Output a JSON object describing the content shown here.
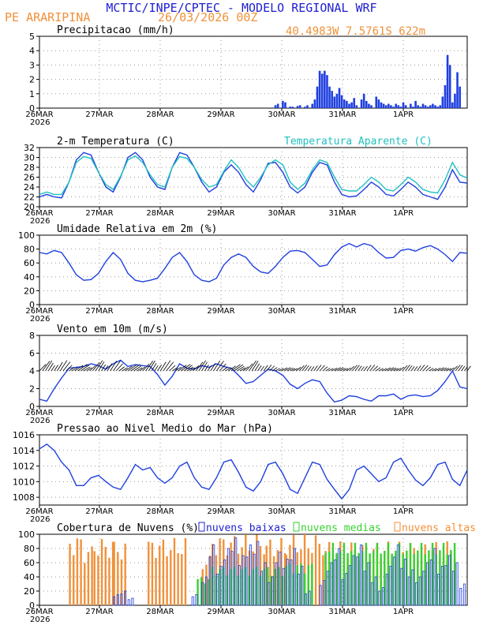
{
  "header": {
    "title": "MCTIC/INPE/CPTEC - MODELO REGIONAL WRF",
    "location": "PE ARARIPINA",
    "datetime": "26/03/2026 00Z",
    "coords": "40.4983W 7.5761S 622m"
  },
  "colors": {
    "blue": "#1f3fe0",
    "cyan": "#20c0c0",
    "orange": "#f0913a",
    "green": "#38d030",
    "text_blue": "#2020d0",
    "text_orange": "#f0913a"
  },
  "chart_data": [
    {
      "id": "precip",
      "type": "bar",
      "title": "Precipitacao (mm/h)",
      "ylim": [
        0,
        5
      ],
      "yticks": [
        0,
        1,
        2,
        3,
        4,
        5
      ],
      "xticks": [
        "26MAR",
        "27MAR",
        "28MAR",
        "29MAR",
        "30MAR",
        "31MAR",
        "1APR"
      ],
      "x_year": "2026",
      "x_hours": [
        96,
        97,
        99,
        100,
        102,
        103,
        105,
        106,
        108,
        109,
        111,
        112,
        113,
        114,
        115,
        116,
        117,
        118,
        119,
        120,
        121,
        122,
        123,
        124,
        125,
        126,
        127,
        128,
        129,
        131,
        132,
        133,
        134,
        135,
        137,
        138,
        139,
        140,
        141,
        142,
        143,
        144,
        145,
        146,
        147,
        148,
        149,
        151,
        152,
        153,
        154,
        155,
        156,
        157,
        158,
        159,
        160,
        161,
        162,
        163,
        164,
        165,
        166,
        167,
        168,
        169,
        170,
        171
      ],
      "values": [
        0.2,
        0.3,
        0.5,
        0.4,
        0.1,
        0.1,
        0.15,
        0.2,
        0.1,
        0.2,
        0.3,
        0.6,
        1.5,
        2.6,
        2.4,
        2.6,
        2.3,
        1.5,
        1.2,
        0.8,
        1.0,
        1.4,
        0.9,
        0.6,
        0.5,
        0.3,
        0.4,
        0.7,
        0.2,
        0.6,
        1.0,
        0.5,
        0.3,
        0.2,
        0.8,
        0.6,
        0.4,
        0.3,
        0.2,
        0.3,
        0.2,
        0.1,
        0.3,
        0.2,
        0.1,
        0.4,
        0.2,
        0.3,
        0.1,
        0.5,
        0.2,
        0.1,
        0.3,
        0.2,
        0.1,
        0.2,
        0.3,
        0.2,
        0.1,
        0.2,
        0.8,
        1.6,
        3.7,
        3.0,
        0.4,
        1.0,
        2.5,
        1.5
      ]
    },
    {
      "id": "temp",
      "type": "line",
      "title": "2-m Temperatura (C)",
      "series_label_2": "Temperatura Aparente (C)",
      "ylim": [
        20,
        32
      ],
      "yticks": [
        20,
        22,
        24,
        26,
        28,
        30,
        32
      ],
      "xticks": [
        "26MAR",
        "27MAR",
        "28MAR",
        "29MAR",
        "30MAR",
        "31MAR",
        "1APR"
      ],
      "x_year": "2026",
      "series": [
        {
          "name": "2-m Temperatura (C)",
          "color": "blue",
          "x": [
            0,
            3,
            6,
            9,
            12,
            15,
            18,
            21,
            24,
            27,
            30,
            33,
            36,
            39,
            42,
            45,
            48,
            51,
            54,
            57,
            60,
            63,
            66,
            69,
            72,
            75,
            78,
            81,
            84,
            87,
            90,
            93,
            96,
            99,
            102,
            105,
            108,
            111,
            114,
            117,
            120,
            123,
            126,
            129,
            132,
            135,
            138,
            141,
            144,
            147,
            150,
            153,
            156,
            159,
            162,
            165,
            168,
            171,
            174
          ],
          "y": [
            22,
            22.5,
            22,
            21.8,
            25,
            29.5,
            31,
            30.5,
            27,
            24,
            23,
            26,
            30,
            31,
            29.5,
            26,
            24,
            23.5,
            28,
            31,
            30.5,
            28,
            25,
            23,
            24,
            27,
            28.5,
            27,
            24.5,
            23,
            25.5,
            28.8,
            29,
            27,
            24,
            22.8,
            24,
            27,
            29,
            28.5,
            25,
            22.5,
            22,
            22.2,
            23.5,
            25,
            24,
            22.5,
            22.2,
            23.5,
            25,
            24,
            22.5,
            22,
            21.5,
            24,
            27.5,
            25,
            24.8
          ]
        },
        {
          "name": "Temperatura Aparente (C)",
          "color": "cyan",
          "x": [
            0,
            3,
            6,
            9,
            12,
            15,
            18,
            21,
            24,
            27,
            30,
            33,
            36,
            39,
            42,
            45,
            48,
            51,
            54,
            57,
            60,
            63,
            66,
            69,
            72,
            75,
            78,
            81,
            84,
            87,
            90,
            93,
            96,
            99,
            102,
            105,
            108,
            111,
            114,
            117,
            120,
            123,
            126,
            129,
            132,
            135,
            138,
            141,
            144,
            147,
            150,
            153,
            156,
            159,
            162,
            165,
            168,
            171,
            174
          ],
          "y": [
            22.5,
            23,
            22.5,
            22.5,
            25,
            29,
            30.2,
            29.8,
            27,
            24.5,
            23.5,
            26.2,
            29.5,
            30.3,
            29,
            26.5,
            24.5,
            24,
            28,
            30.2,
            29.8,
            28,
            25.5,
            24,
            24.5,
            27.2,
            29.5,
            28,
            25.5,
            24,
            26,
            28.5,
            29.5,
            28.5,
            25,
            23.5,
            24.8,
            27.5,
            29.5,
            29,
            26,
            23.5,
            23.2,
            23.2,
            24.5,
            26,
            25,
            23.5,
            23.2,
            24.5,
            26,
            25,
            23.5,
            23,
            22.8,
            25.5,
            29,
            26.5,
            25.8
          ]
        }
      ]
    },
    {
      "id": "rh",
      "type": "line",
      "title": "Umidade Relativa em 2m (%)",
      "ylim": [
        0,
        100
      ],
      "yticks": [
        0,
        20,
        40,
        60,
        80,
        100
      ],
      "xticks": [
        "26MAR",
        "27MAR",
        "28MAR",
        "29MAR",
        "30MAR",
        "31MAR",
        "1APR"
      ],
      "x_year": "2026",
      "x": [
        0,
        3,
        6,
        9,
        12,
        15,
        18,
        21,
        24,
        27,
        30,
        33,
        36,
        39,
        42,
        45,
        48,
        51,
        54,
        57,
        60,
        63,
        66,
        69,
        72,
        75,
        78,
        81,
        84,
        87,
        90,
        93,
        96,
        99,
        102,
        105,
        108,
        111,
        114,
        117,
        120,
        123,
        126,
        129,
        132,
        135,
        138,
        141,
        144,
        147,
        150,
        153,
        156,
        159,
        162,
        165,
        168,
        171,
        174
      ],
      "y": [
        75,
        73,
        78,
        75,
        60,
        43,
        35,
        36,
        45,
        62,
        75,
        65,
        45,
        35,
        33,
        35,
        38,
        52,
        68,
        75,
        62,
        43,
        35,
        33,
        38,
        57,
        68,
        73,
        68,
        55,
        47,
        45,
        55,
        68,
        77,
        78,
        75,
        65,
        55,
        57,
        72,
        83,
        88,
        83,
        88,
        85,
        75,
        67,
        68,
        78,
        80,
        77,
        82,
        85,
        80,
        72,
        62,
        75,
        74
      ]
    },
    {
      "id": "wind",
      "type": "line",
      "title": "Vento em 10m (m/s)",
      "ylim": [
        0,
        8
      ],
      "yticks": [
        0,
        2,
        4,
        6,
        8
      ],
      "xticks": [
        "26MAR",
        "27MAR",
        "28MAR",
        "29MAR",
        "30MAR",
        "31MAR",
        "1APR"
      ],
      "x_year": "2026",
      "x": [
        0,
        3,
        6,
        9,
        12,
        15,
        18,
        21,
        24,
        27,
        30,
        33,
        36,
        39,
        42,
        45,
        48,
        51,
        54,
        57,
        60,
        63,
        66,
        69,
        72,
        75,
        78,
        81,
        84,
        87,
        90,
        93,
        96,
        99,
        102,
        105,
        108,
        111,
        114,
        117,
        120,
        123,
        126,
        129,
        132,
        135,
        138,
        141,
        144,
        147,
        150,
        153,
        156,
        159,
        162,
        165,
        168,
        171,
        174
      ],
      "y": [
        0.8,
        0.6,
        2,
        3.2,
        4.3,
        4.4,
        4.5,
        4.8,
        4.6,
        4.2,
        4.8,
        5.2,
        4.5,
        4.7,
        4.6,
        4.5,
        3.6,
        2.4,
        3.4,
        4.8,
        4.3,
        4.2,
        4.6,
        4.4,
        4.8,
        4.5,
        4.3,
        3.5,
        2.6,
        2.8,
        3.5,
        4.2,
        4.0,
        3.5,
        2.5,
        2,
        2.6,
        3,
        2.8,
        1.5,
        0.5,
        0.7,
        1.2,
        1.1,
        0.8,
        0.6,
        1.2,
        1.2,
        1.4,
        0.8,
        1.2,
        1.3,
        1.1,
        1.2,
        1.8,
        2.8,
        4,
        2.2,
        2
      ]
    },
    {
      "id": "pressure",
      "type": "line",
      "title": "Pressao ao Nivel Medio do Mar (hPa)",
      "ylim": [
        1007,
        1016
      ],
      "yticks": [
        1008,
        1010,
        1012,
        1014,
        1016
      ],
      "xticks": [
        "26MAR",
        "27MAR",
        "28MAR",
        "29MAR",
        "30MAR",
        "31MAR",
        "1APR"
      ],
      "x_year": "2026",
      "x": [
        0,
        3,
        6,
        9,
        12,
        15,
        18,
        21,
        24,
        27,
        30,
        33,
        36,
        39,
        42,
        45,
        48,
        51,
        54,
        57,
        60,
        63,
        66,
        69,
        72,
        75,
        78,
        81,
        84,
        87,
        90,
        93,
        96,
        99,
        102,
        105,
        108,
        111,
        114,
        117,
        120,
        123,
        126,
        129,
        132,
        135,
        138,
        141,
        144,
        147,
        150,
        153,
        156,
        159,
        162,
        165,
        168,
        171,
        174
      ],
      "y": [
        1014.2,
        1014.8,
        1014,
        1012.5,
        1011.5,
        1009.5,
        1009.5,
        1010.5,
        1010.8,
        1010,
        1009.3,
        1009,
        1010.5,
        1012.2,
        1011.5,
        1011.8,
        1010.5,
        1009.8,
        1010.5,
        1012,
        1012.5,
        1010.5,
        1009.3,
        1009,
        1010.5,
        1012.5,
        1012.8,
        1011.2,
        1009.3,
        1008.8,
        1010,
        1012.2,
        1012.5,
        1011,
        1009,
        1008.5,
        1010.5,
        1012.5,
        1012.2,
        1010.3,
        1009,
        1007.8,
        1009,
        1011.5,
        1012,
        1011,
        1010,
        1010.5,
        1012.5,
        1013,
        1011.5,
        1010.2,
        1009.5,
        1010.5,
        1012.2,
        1012.5,
        1010.3,
        1009.5,
        1011.5
      ]
    },
    {
      "id": "clouds",
      "type": "bar",
      "title": "Cobertura de Nuvens (%)",
      "legend": [
        "nuvens baixas",
        "nuvens medias",
        "nuvens altas"
      ],
      "ylim": [
        0,
        100
      ],
      "yticks": [
        0,
        20,
        40,
        60,
        80,
        100
      ],
      "xticks": [
        "26MAR",
        "27MAR",
        "28MAR",
        "29MAR",
        "30MAR",
        "31MAR",
        "1APR"
      ],
      "x_year": "2026",
      "high_ranges": [
        [
          12,
          18,
          100
        ],
        [
          18,
          22,
          85
        ],
        [
          22,
          30,
          95
        ],
        [
          30,
          36,
          90
        ],
        [
          44,
          60,
          95
        ],
        [
          66,
          70,
          70
        ],
        [
          70,
          92,
          100
        ],
        [
          92,
          100,
          95
        ],
        [
          100,
          116,
          100
        ],
        [
          116,
          170,
          90
        ]
      ],
      "mid_ranges": [
        [
          64,
          70,
          40
        ],
        [
          70,
          100,
          55
        ],
        [
          100,
          112,
          60
        ],
        [
          116,
          170,
          88
        ]
      ],
      "low_points": [
        [
          30,
          15
        ],
        [
          33,
          20
        ],
        [
          36,
          10
        ],
        [
          62,
          15
        ],
        [
          66,
          40
        ],
        [
          69,
          85
        ],
        [
          72,
          55
        ],
        [
          75,
          80
        ],
        [
          78,
          95
        ],
        [
          81,
          70
        ],
        [
          84,
          85
        ],
        [
          87,
          90
        ],
        [
          90,
          60
        ],
        [
          93,
          40
        ],
        [
          96,
          75
        ],
        [
          99,
          65
        ],
        [
          102,
          80
        ],
        [
          105,
          55
        ],
        [
          108,
          20
        ],
        [
          114,
          35
        ],
        [
          117,
          60
        ],
        [
          120,
          80
        ],
        [
          123,
          45
        ],
        [
          126,
          70
        ],
        [
          129,
          85
        ],
        [
          132,
          60
        ],
        [
          135,
          40
        ],
        [
          138,
          25
        ],
        [
          141,
          55
        ],
        [
          144,
          85
        ],
        [
          147,
          65
        ],
        [
          150,
          50
        ],
        [
          153,
          40
        ],
        [
          156,
          60
        ],
        [
          159,
          80
        ],
        [
          162,
          55
        ],
        [
          165,
          70
        ],
        [
          168,
          60
        ],
        [
          171,
          30
        ]
      ]
    }
  ]
}
